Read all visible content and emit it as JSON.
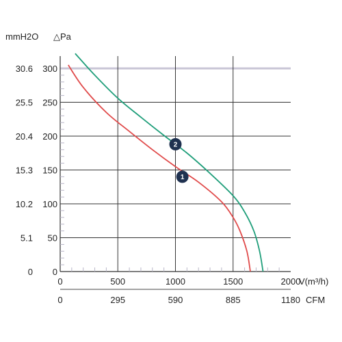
{
  "chart_data": {
    "type": "line",
    "units": {
      "y_left": "mmH2O",
      "y_right": "△Pa",
      "x_top": "V(m³/h)",
      "x_bottom": "CFM"
    },
    "y_pa_ticks": [
      "0",
      "50",
      "100",
      "150",
      "200",
      "250",
      "300"
    ],
    "y_mmh2o_ticks": [
      "0",
      "5.1",
      "10.2",
      "15.3",
      "20.4",
      "25.5",
      "30.6"
    ],
    "x_m3h_ticks": [
      "0",
      "500",
      "1000",
      "1500",
      "2000"
    ],
    "x_cfm_ticks": [
      "0",
      "295",
      "590",
      "885",
      "1180"
    ],
    "xlim": [
      0,
      2000
    ],
    "ylim": [
      0,
      300
    ],
    "grid": true,
    "colors": {
      "series_1": "#e04a4a",
      "series_2": "#1f9e7a",
      "grid": "#333333",
      "highlight_line": "#c9c6d6",
      "marker": "#1f3150"
    },
    "series": [
      {
        "id": "1",
        "label": "1",
        "label_at": [
          1060,
          140
        ],
        "x": [
          70,
          200,
          400,
          600,
          800,
          1000,
          1200,
          1400,
          1500,
          1560,
          1620,
          1650
        ],
        "y": [
          305,
          272,
          235,
          207,
          180,
          155,
          132,
          103,
          80,
          60,
          30,
          0
        ]
      },
      {
        "id": "2",
        "label": "2",
        "label_at": [
          1000,
          188
        ],
        "x": [
          130,
          300,
          500,
          700,
          900,
          1100,
          1300,
          1500,
          1600,
          1680,
          1730,
          1760
        ],
        "y": [
          322,
          290,
          256,
          228,
          201,
          175,
          145,
          112,
          88,
          60,
          30,
          0
        ]
      }
    ]
  }
}
